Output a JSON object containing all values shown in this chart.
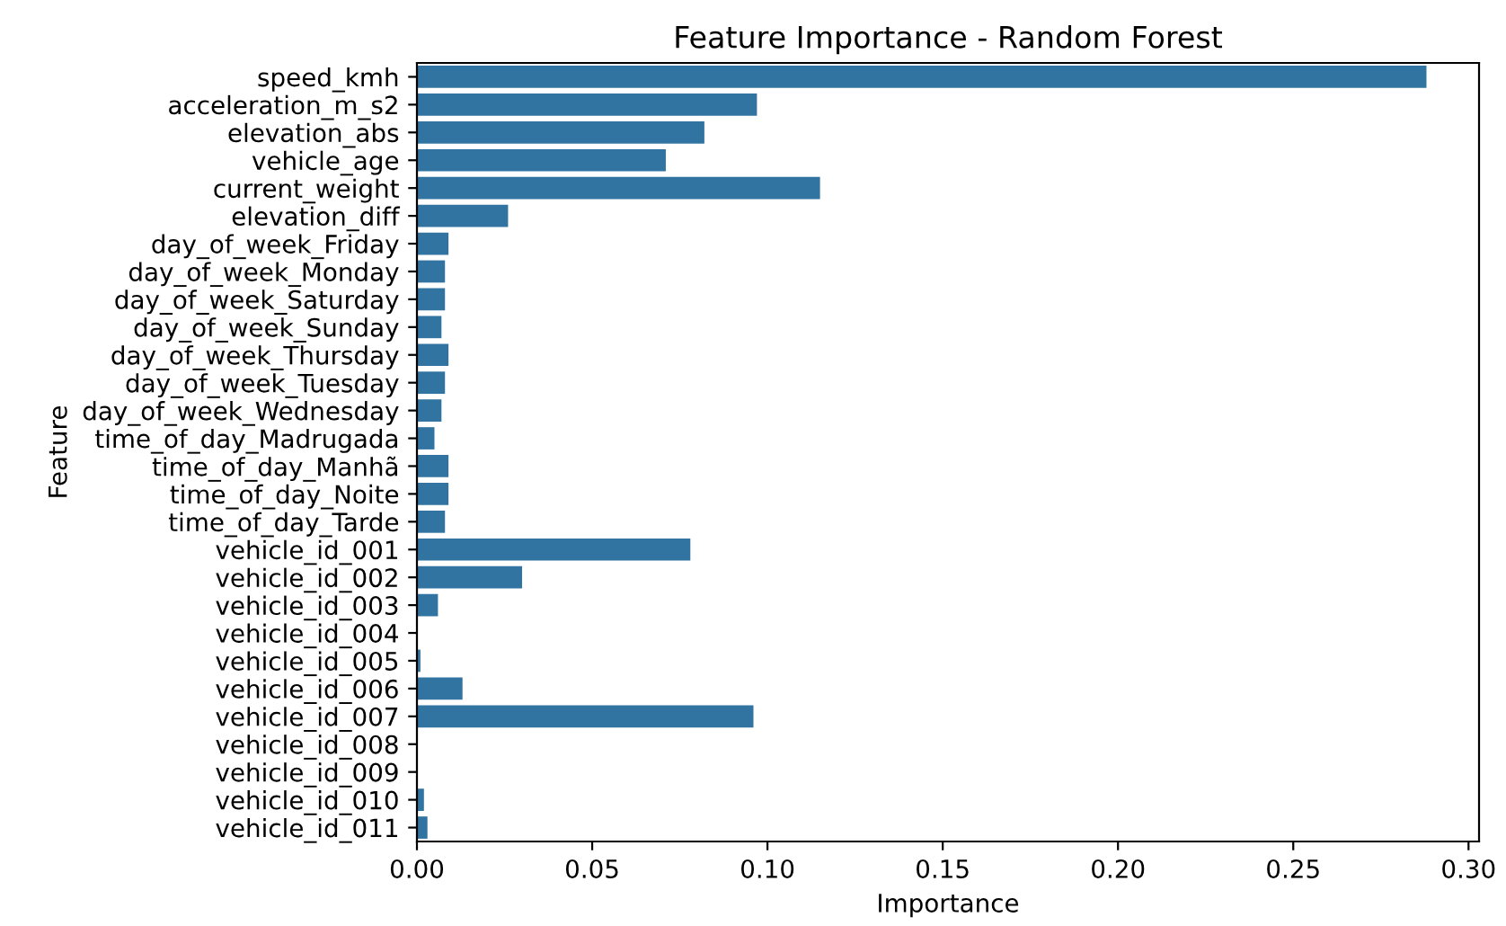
{
  "chart_data": {
    "type": "bar",
    "orientation": "horizontal",
    "title": "Feature Importance - Random Forest",
    "xlabel": "Importance",
    "ylabel": "Feature",
    "categories": [
      "speed_kmh",
      "acceleration_m_s2",
      "elevation_abs",
      "vehicle_age",
      "current_weight",
      "elevation_diff",
      "day_of_week_Friday",
      "day_of_week_Monday",
      "day_of_week_Saturday",
      "day_of_week_Sunday",
      "day_of_week_Thursday",
      "day_of_week_Tuesday",
      "day_of_week_Wednesday",
      "time_of_day_Madrugada",
      "time_of_day_Manhã",
      "time_of_day_Noite",
      "time_of_day_Tarde",
      "vehicle_id_001",
      "vehicle_id_002",
      "vehicle_id_003",
      "vehicle_id_004",
      "vehicle_id_005",
      "vehicle_id_006",
      "vehicle_id_007",
      "vehicle_id_008",
      "vehicle_id_009",
      "vehicle_id_010",
      "vehicle_id_011"
    ],
    "values": [
      0.288,
      0.097,
      0.082,
      0.071,
      0.115,
      0.026,
      0.009,
      0.008,
      0.008,
      0.007,
      0.009,
      0.008,
      0.007,
      0.005,
      0.009,
      0.009,
      0.008,
      0.078,
      0.03,
      0.006,
      0.0,
      0.001,
      0.013,
      0.096,
      0.0,
      0.0,
      0.002,
      0.003
    ],
    "color": "#3274a1",
    "xlim": [
      0,
      0.303
    ],
    "xticks": [
      {
        "value": 0,
        "label": "0.00"
      },
      {
        "value": 0.05,
        "label": "0.05"
      },
      {
        "value": 0.1,
        "label": "0.10"
      },
      {
        "value": 0.15,
        "label": "0.15"
      },
      {
        "value": 0.2,
        "label": "0.20"
      },
      {
        "value": 0.25,
        "label": "0.25"
      },
      {
        "value": 0.3,
        "label": "0.30"
      }
    ],
    "grid": false,
    "legend": false
  }
}
